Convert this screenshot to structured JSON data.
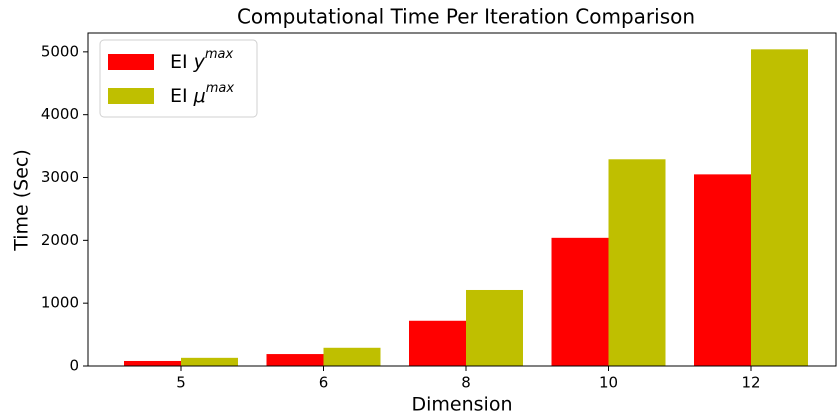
{
  "chart_data": {
    "type": "bar",
    "title": "Computational Time Per Iteration Comparison",
    "xlabel": "Dimension",
    "ylabel": "Time (Sec)",
    "categories": [
      "5",
      "6",
      "8",
      "10",
      "12"
    ],
    "series": [
      {
        "name": "EI",
        "symbol": "y",
        "superscript": "max",
        "color": "#ff0000",
        "values": [
          80,
          190,
          720,
          2040,
          3050
        ]
      },
      {
        "name": "EI",
        "symbol": "μ",
        "superscript": "max",
        "color": "#bfbf00",
        "values": [
          130,
          290,
          1210,
          3290,
          5040
        ]
      }
    ],
    "ylim": [
      0,
      5300
    ],
    "yticks": [
      0,
      1000,
      2000,
      3000,
      4000,
      5000
    ],
    "legend": "upper left"
  }
}
